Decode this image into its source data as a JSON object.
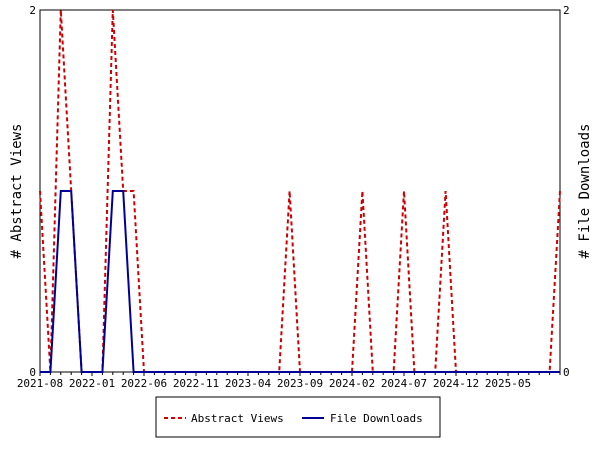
{
  "chart_data": {
    "type": "line",
    "x_labels": [
      "2021-08",
      "2022-01",
      "2022-06",
      "2022-11",
      "2023-04",
      "2023-09",
      "2024-02",
      "2024-07",
      "2024-12",
      "2025-05"
    ],
    "x": [
      "2021-08",
      "2021-09",
      "2021-10",
      "2021-11",
      "2021-12",
      "2022-01",
      "2022-02",
      "2022-03",
      "2022-04",
      "2022-05",
      "2022-06",
      "2022-07",
      "2022-08",
      "2022-09",
      "2022-10",
      "2022-11",
      "2022-12",
      "2023-01",
      "2023-02",
      "2023-03",
      "2023-04",
      "2023-05",
      "2023-06",
      "2023-07",
      "2023-08",
      "2023-09",
      "2023-10",
      "2023-11",
      "2023-12",
      "2024-01",
      "2024-02",
      "2024-03",
      "2024-04",
      "2024-05",
      "2024-06",
      "2024-07",
      "2024-08",
      "2024-09",
      "2024-10",
      "2024-11",
      "2024-12",
      "2025-01",
      "2025-02",
      "2025-03",
      "2025-04",
      "2025-05",
      "2025-06",
      "2025-07",
      "2025-08",
      "2025-09",
      "2025-10"
    ],
    "series": [
      {
        "name": "Abstract Views",
        "color": "#cc0000",
        "style": "dashed",
        "values": [
          1,
          0,
          2,
          1,
          0,
          0,
          0,
          2,
          1,
          1,
          0,
          0,
          0,
          0,
          0,
          0,
          0,
          0,
          0,
          0,
          0,
          0,
          0,
          0,
          1,
          0,
          0,
          0,
          0,
          0,
          0,
          1,
          0,
          0,
          0,
          1,
          0,
          0,
          0,
          1,
          0,
          0,
          0,
          0,
          0,
          0,
          0,
          0,
          0,
          0,
          1
        ]
      },
      {
        "name": "File Downloads",
        "color": "#000099",
        "style": "solid",
        "values": [
          0,
          0,
          1,
          1,
          0,
          0,
          0,
          1,
          1,
          0,
          0,
          0,
          0,
          0,
          0,
          0,
          0,
          0,
          0,
          0,
          0,
          0,
          0,
          0,
          0,
          0,
          0,
          0,
          0,
          0,
          0,
          0,
          0,
          0,
          0,
          0,
          0,
          0,
          0,
          0,
          0,
          0,
          0,
          0,
          0,
          0,
          0,
          0,
          0,
          0,
          0
        ]
      }
    ],
    "ylabel_left": "# Abstract Views",
    "ylabel_right": "# File Downloads",
    "ylim_left": [
      0,
      2
    ],
    "ylim_right": [
      0,
      2
    ],
    "y_ticks_left": [
      "0",
      "2"
    ],
    "y_ticks_right": [
      "0",
      "2"
    ],
    "grid": false,
    "legend_position": "bottom-center"
  }
}
